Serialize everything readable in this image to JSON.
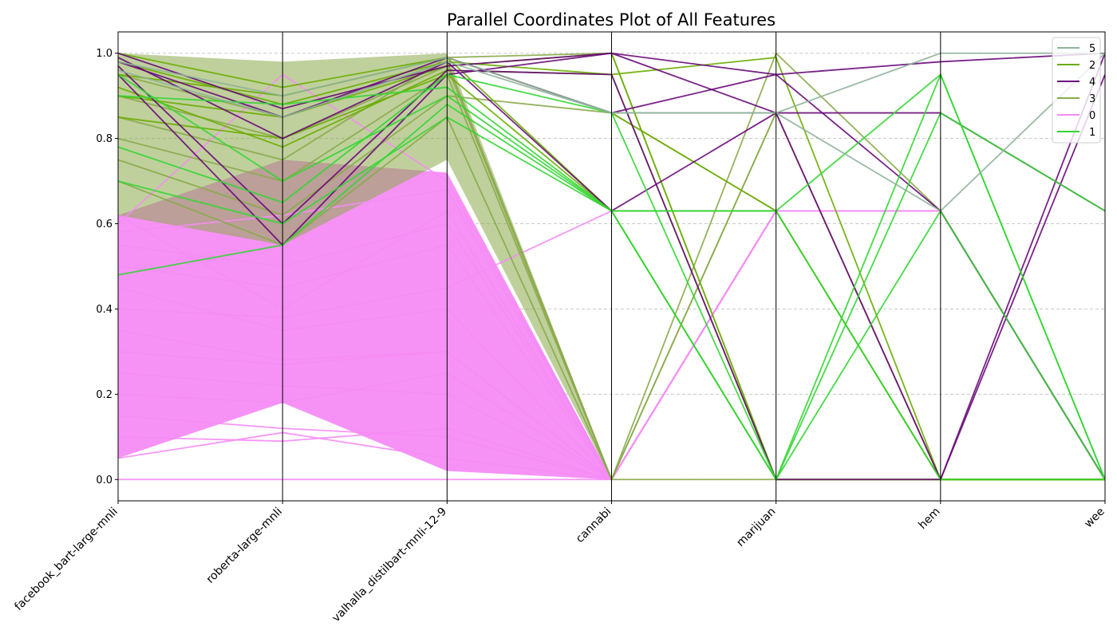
{
  "chart_data": {
    "type": "line",
    "subtype": "parallel-coordinates",
    "title": "Parallel Coordinates Plot of All Features",
    "xlabel": "",
    "ylabel": "",
    "ylim": [
      -0.05,
      1.05
    ],
    "yticks": [
      "0.0",
      "0.2",
      "0.4",
      "0.6",
      "0.8",
      "1.0"
    ],
    "categories": [
      "facebook_bart-large-mnli",
      "roberta-large-mnli",
      "valhalla_distilbart-mnli-12-9",
      "cannabi",
      "marijuan",
      "hem",
      "wee"
    ],
    "grid": "horizontal-dashed",
    "legend_position": "top-right",
    "legend": [
      {
        "label": "5",
        "color": "#8fb39a"
      },
      {
        "label": "2",
        "color": "#6aad00"
      },
      {
        "label": "4",
        "color": "#6a0a7a"
      },
      {
        "label": "3",
        "color": "#8aaa4a"
      },
      {
        "label": "0",
        "color": "#f58cf5"
      },
      {
        "label": "1",
        "color": "#33d633"
      }
    ],
    "series": [
      {
        "label": "0",
        "color": "#f58cf5",
        "values": [
          [
            0.45,
            0.35,
            0.4,
            0,
            0.63,
            0.63,
            0
          ],
          [
            0.3,
            0.27,
            0.3,
            0,
            0.63,
            0.63,
            0
          ],
          [
            0.55,
            0.5,
            0.6,
            0,
            0.63,
            0.63,
            0
          ],
          [
            0.0,
            0.0,
            0.0,
            0,
            0.63,
            0.63,
            0
          ],
          [
            0.1,
            0.09,
            0.12,
            0,
            0.63,
            0.63,
            0
          ],
          [
            0.6,
            0.95,
            0.7,
            0,
            0.63,
            0.63,
            0
          ],
          [
            0.25,
            0.22,
            0.2,
            0,
            0.63,
            0.63,
            0
          ],
          [
            0.35,
            0.28,
            0.3,
            0,
            0.63,
            0.63,
            0
          ],
          [
            0.62,
            0.4,
            0.63,
            0,
            0.63,
            0.63,
            0
          ],
          [
            0.2,
            0.18,
            0.25,
            0,
            0.63,
            0.63,
            0
          ],
          [
            0.5,
            0.45,
            0.55,
            0,
            0.63,
            0.63,
            0
          ],
          [
            0.15,
            0.12,
            0.1,
            0,
            0.63,
            0.63,
            0
          ],
          [
            0.4,
            0.38,
            0.45,
            0.63,
            0.63,
            0.63,
            0
          ],
          [
            0.05,
            0.11,
            0.05,
            0,
            0.63,
            0.63,
            0
          ],
          [
            0.58,
            0.62,
            0.68,
            0,
            0.63,
            0.63,
            0
          ]
        ]
      },
      {
        "label": "3",
        "color": "#8aaa4a",
        "values": [
          [
            0.95,
            0.85,
            0.98,
            0,
            0.86,
            0,
            0
          ],
          [
            0.8,
            0.7,
            0.95,
            0,
            1.0,
            0.63,
            0
          ],
          [
            0.7,
            0.55,
            0.85,
            0,
            0.86,
            0,
            0
          ],
          [
            0.9,
            0.8,
            0.97,
            0,
            0,
            0,
            0
          ],
          [
            0.75,
            0.62,
            0.9,
            0.86,
            0.63,
            0,
            0
          ],
          [
            0.85,
            0.75,
            0.99,
            1.0,
            0,
            0,
            0
          ]
        ]
      },
      {
        "label": "2",
        "color": "#6aad00",
        "values": [
          [
            1.0,
            0.92,
            0.99,
            0.63,
            0.63,
            0,
            0
          ],
          [
            0.98,
            0.88,
            0.98,
            0.95,
            0,
            0,
            0
          ],
          [
            0.9,
            0.85,
            0.97,
            1.0,
            0,
            0,
            0
          ],
          [
            0.95,
            0.9,
            0.99,
            0.86,
            0.63,
            0,
            0
          ],
          [
            0.85,
            0.8,
            0.95,
            0.63,
            0,
            0,
            0
          ],
          [
            0.92,
            0.78,
            0.96,
            0.95,
            0.99,
            0,
            0
          ]
        ]
      },
      {
        "label": "4",
        "color": "#6a0a7a",
        "values": [
          [
            1.0,
            0.87,
            0.97,
            1.0,
            0.95,
            0.98,
            1.0
          ],
          [
            0.95,
            0.55,
            0.95,
            1.0,
            0.86,
            0.86,
            0.63
          ],
          [
            0.98,
            0.85,
            0.99,
            0.86,
            0.95,
            0.63,
            0
          ],
          [
            0.99,
            0.8,
            0.98,
            0.63,
            0.86,
            0,
            1.0
          ],
          [
            0.97,
            0.6,
            0.96,
            0.95,
            0,
            0,
            0.95
          ]
        ]
      },
      {
        "label": "1",
        "color": "#33d633",
        "values": [
          [
            0.78,
            0.65,
            0.95,
            0.86,
            0,
            0.95,
            0
          ],
          [
            0.48,
            0.55,
            0.88,
            0.63,
            0,
            0.86,
            0.63
          ],
          [
            0.9,
            0.88,
            0.92,
            0.63,
            0.63,
            0,
            0
          ],
          [
            0.95,
            0.7,
            0.9,
            0.63,
            0.63,
            0.95,
            0
          ],
          [
            0.7,
            0.6,
            0.85,
            0.63,
            0,
            0.63,
            0
          ]
        ]
      },
      {
        "label": "5",
        "color": "#8fb39a",
        "values": [
          [
            0.98,
            0.9,
            0.99,
            0.86,
            0.86,
            1.0,
            1.0
          ],
          [
            0.96,
            0.85,
            0.98,
            0.86,
            0.86,
            0.63,
            1.0
          ]
        ]
      }
    ]
  }
}
